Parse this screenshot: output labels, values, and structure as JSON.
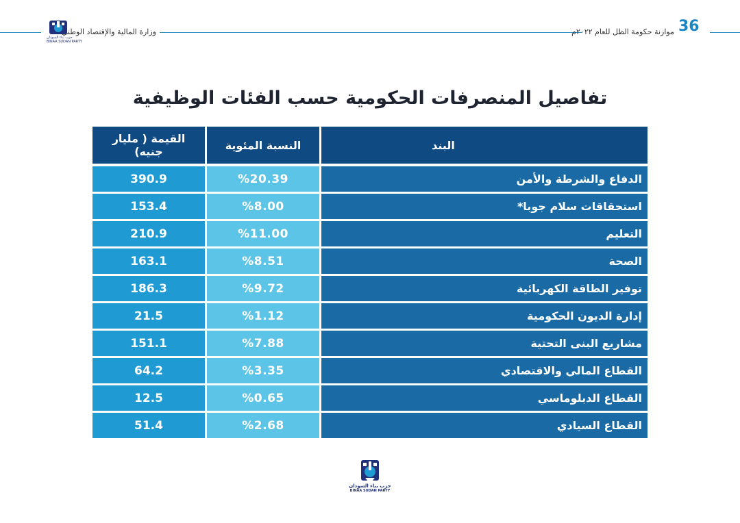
{
  "header": {
    "page_number": "36",
    "budget_caption": "موازنة حكومة الظل للعام ٢٠٢٢م",
    "ministry_caption": "وزارة المالية والإقتصاد الوطني",
    "logo_small_text": "حزب بناء السودان",
    "logo_small_sub": "BINAA SUDAN PARTY"
  },
  "title": "تفاصيل المنصرفات الحكومية حسب الفئات الوظيفية",
  "table": {
    "columns": {
      "item": "البند",
      "percent": "النسبة المئوية",
      "value": "القيمة ( مليار جنيه)"
    },
    "rows": [
      {
        "item": "الدفاع والشرطة والأمن",
        "percent": "%20.39",
        "value": "390.9"
      },
      {
        "item": "استحقاقات سلام جوبا*",
        "percent": "%8.00",
        "value": "153.4"
      },
      {
        "item": "التعليم",
        "percent": "%11.00",
        "value": "210.9"
      },
      {
        "item": "الصحة",
        "percent": "%8.51",
        "value": "163.1"
      },
      {
        "item": "توفير الطاقة الكهربائية",
        "percent": "%9.72",
        "value": "186.3"
      },
      {
        "item": "إدارة الديون الحكومية",
        "percent": "%1.12",
        "value": "21.5"
      },
      {
        "item": "مشاريع البنى التحتية",
        "percent": "%7.88",
        "value": "151.1"
      },
      {
        "item": "القطاع المالي والاقتصادي",
        "percent": "%3.35",
        "value": "64.2"
      },
      {
        "item": "القطاع الدبلوماسي",
        "percent": "%0.65",
        "value": "12.5"
      },
      {
        "item": "القطاع السيادي",
        "percent": "%2.68",
        "value": "51.4"
      }
    ]
  },
  "footer": {
    "logo_text": "حزب بناء السودان",
    "logo_sub": "BINAA SUDAN PARTY"
  },
  "colors": {
    "header_fill": "#0f4a82",
    "value_fill": "#1f9ad3",
    "percent_fill": "#5cc4e7",
    "item_fill": "#1a6aa5",
    "rule_line": "#2f8fbf",
    "page_number": "#1a86c4"
  }
}
